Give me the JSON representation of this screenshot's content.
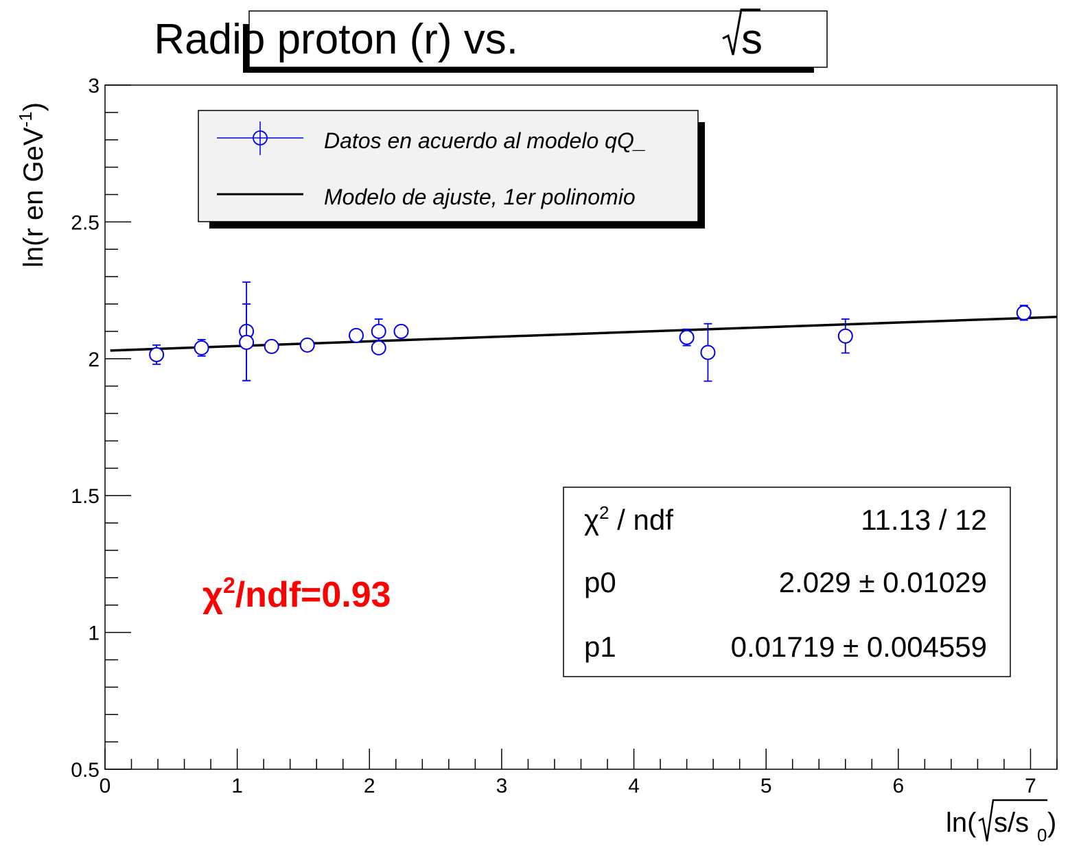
{
  "chart_data": {
    "type": "scatter",
    "title_text": "Radio proton (r) vs. ",
    "title_sqrt_arg": "s",
    "xlabel": {
      "prefix": "ln(",
      "radicand": "s/s",
      "subscript": "0",
      "suffix": ")"
    },
    "ylabel": {
      "main": "ln(r en GeV",
      "superscript": "-1",
      "suffix": ")"
    },
    "xlim": [
      0,
      7.2
    ],
    "ylim": [
      0.5,
      3
    ],
    "x_ticks": [
      "0",
      "1",
      "2",
      "3",
      "4",
      "5",
      "6",
      "7"
    ],
    "y_ticks": [
      "0.5",
      "1",
      "1.5",
      "2",
      "2.5",
      "3"
    ],
    "series": [
      {
        "name": "Datos en acuerdo al modelo qQ_",
        "kind": "points_with_errors",
        "color": "#0000ee",
        "marker": "open-circle",
        "points": [
          {
            "x": 0.39,
            "y": 2.015,
            "ey": 0.035
          },
          {
            "x": 0.73,
            "y": 2.04,
            "ey": 0.03
          },
          {
            "x": 1.07,
            "y": 2.1,
            "ey": 0.18
          },
          {
            "x": 1.07,
            "y": 2.06,
            "ey": 0.14
          },
          {
            "x": 1.26,
            "y": 2.045,
            "ey": 0.0
          },
          {
            "x": 1.53,
            "y": 2.05,
            "ey": 0.0
          },
          {
            "x": 1.9,
            "y": 2.085,
            "ey": 0.0
          },
          {
            "x": 2.07,
            "y": 2.1,
            "ey": 0.045
          },
          {
            "x": 2.07,
            "y": 2.04,
            "ey": 0.0
          },
          {
            "x": 2.24,
            "y": 2.1,
            "ey": 0.0
          },
          {
            "x": 4.4,
            "y": 2.078,
            "ey": 0.03
          },
          {
            "x": 4.56,
            "y": 2.023,
            "ey": 0.105
          },
          {
            "x": 5.6,
            "y": 2.083,
            "ey": 0.062
          },
          {
            "x": 6.95,
            "y": 2.168,
            "ey": 0.027
          }
        ]
      },
      {
        "name": "Modelo de ajuste, 1er polinomio",
        "kind": "line",
        "color": "#000000",
        "x": [
          0.04,
          7.2
        ],
        "y": [
          2.03,
          2.153
        ]
      }
    ],
    "legend_position": "top-left",
    "stats": {
      "rows": [
        {
          "label_main": "χ",
          "label_sup": "2",
          "label_rest": " / ndf",
          "value": "11.13 / 12"
        },
        {
          "label_main": "p0",
          "label_sup": "",
          "label_rest": "",
          "value": "2.029 ± 0.01029"
        },
        {
          "label_main": "p1",
          "label_sup": "",
          "label_rest": "",
          "value": "0.01719 ± 0.004559"
        }
      ]
    },
    "annotation": {
      "main": "χ",
      "sup": "2",
      "rest": "/ndf=0.93",
      "color": "#ff0000"
    }
  }
}
